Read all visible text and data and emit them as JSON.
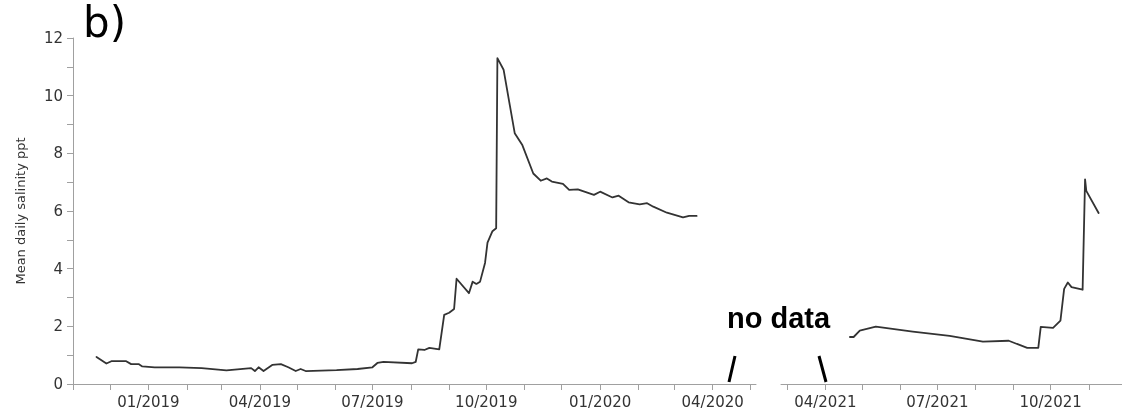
{
  "chart_data": [
    {
      "type": "line",
      "title": "b)",
      "ylabel": "Mean daily salinity ppt",
      "xlim": [
        "2018-11-01",
        "2020-05-06"
      ],
      "xticks": [
        {
          "value": "2018-11",
          "label": null
        },
        {
          "value": "2018-12",
          "label": null
        },
        {
          "value": "2019-01",
          "label": "01/2019"
        },
        {
          "value": "2019-02",
          "label": null
        },
        {
          "value": "2019-03",
          "label": null
        },
        {
          "value": "2019-04",
          "label": "04/2019"
        },
        {
          "value": "2019-05",
          "label": null
        },
        {
          "value": "2019-06",
          "label": null
        },
        {
          "value": "2019-07",
          "label": "07/2019"
        },
        {
          "value": "2019-08",
          "label": null
        },
        {
          "value": "2019-09",
          "label": null
        },
        {
          "value": "2019-10",
          "label": "10/2019"
        },
        {
          "value": "2019-11",
          "label": null
        },
        {
          "value": "2019-12",
          "label": null
        },
        {
          "value": "2020-01",
          "label": "01/2020"
        },
        {
          "value": "2020-02",
          "label": null
        },
        {
          "value": "2020-03",
          "label": null
        },
        {
          "value": "2020-04",
          "label": "04/2020"
        },
        {
          "value": "2020-05",
          "label": null
        }
      ],
      "ylim": [
        0,
        12
      ],
      "yticks": [
        0,
        {
          "value": 1,
          "label": null
        },
        2,
        {
          "value": 3,
          "label": null
        },
        4,
        {
          "value": 5,
          "label": null
        },
        6,
        {
          "value": 7,
          "label": null
        },
        8,
        {
          "value": 9,
          "label": null
        },
        10,
        {
          "value": 11,
          "label": null
        },
        12
      ],
      "grid": false,
      "marker": "none",
      "line_style": "solid",
      "series": [
        {
          "color": "#333333",
          "x": [
            "2018-11-20",
            "2018-11-28",
            "2018-12-02",
            "2018-12-14",
            "2018-12-18",
            "2018-12-24",
            "2018-12-27",
            "2019-01-06",
            "2019-01-26",
            "2019-02-13",
            "2019-03-05",
            "2019-03-25",
            "2019-03-28",
            "2019-03-31",
            "2019-04-04",
            "2019-04-11",
            "2019-04-18",
            "2019-04-24",
            "2019-04-30",
            "2019-05-04",
            "2019-05-08",
            "2019-06-02",
            "2019-06-19",
            "2019-07-01",
            "2019-07-05",
            "2019-07-10",
            "2019-08-02",
            "2019-08-05",
            "2019-08-07",
            "2019-08-12",
            "2019-08-16",
            "2019-08-24",
            "2019-08-28",
            "2019-09-01",
            "2019-09-05",
            "2019-09-07",
            "2019-09-17",
            "2019-09-20",
            "2019-09-23",
            "2019-09-26",
            "2019-09-30",
            "2019-10-02",
            "2019-10-06",
            "2019-10-09",
            "2019-10-10",
            "2019-10-15",
            "2019-10-24",
            "2019-10-30",
            "2019-11-08",
            "2019-11-14",
            "2019-11-19",
            "2019-11-23",
            "2019-12-02",
            "2019-12-07",
            "2019-12-14",
            "2019-12-27",
            "2020-01-01",
            "2020-01-11",
            "2020-01-16",
            "2020-01-24",
            "2020-02-02",
            "2020-02-08",
            "2020-02-13",
            "2020-02-24",
            "2020-03-08",
            "2020-03-13",
            "2020-03-19"
          ],
          "values": [
            0.94,
            0.71,
            0.79,
            0.79,
            0.69,
            0.69,
            0.61,
            0.58,
            0.58,
            0.55,
            0.47,
            0.55,
            0.45,
            0.58,
            0.45,
            0.66,
            0.69,
            0.58,
            0.45,
            0.52,
            0.45,
            0.48,
            0.52,
            0.58,
            0.73,
            0.77,
            0.72,
            0.77,
            1.2,
            1.18,
            1.25,
            1.2,
            2.4,
            2.47,
            2.6,
            3.65,
            3.15,
            3.55,
            3.47,
            3.55,
            4.2,
            4.9,
            5.3,
            5.4,
            11.3,
            10.9,
            8.7,
            8.3,
            7.3,
            7.05,
            7.13,
            7.02,
            6.94,
            6.73,
            6.75,
            6.56,
            6.67,
            6.47,
            6.53,
            6.3,
            6.23,
            6.27,
            6.15,
            5.94,
            5.78,
            5.83,
            5.83
          ]
        }
      ]
    },
    {
      "type": "line",
      "annotations": [
        "no data"
      ],
      "xlim": [
        "2021-02-24",
        "2021-11-28"
      ],
      "xticks": [
        {
          "value": "2021-03",
          "label": null
        },
        {
          "value": "2021-04",
          "label": "04/2021"
        },
        {
          "value": "2021-05",
          "label": null
        },
        {
          "value": "2021-06",
          "label": null
        },
        {
          "value": "2021-07",
          "label": "07/2021"
        },
        {
          "value": "2021-08",
          "label": null
        },
        {
          "value": "2021-09",
          "label": null
        },
        {
          "value": "2021-10",
          "label": "10/2021"
        },
        {
          "value": "2021-11",
          "label": null
        }
      ],
      "ylim": [
        0,
        12
      ],
      "tick_labels": "x",
      "grid": false,
      "marker": "none",
      "line_style": "solid",
      "series": [
        {
          "color": "#333333",
          "x": [
            "2021-04-21",
            "2021-04-24",
            "2021-04-29",
            "2021-05-12",
            "2021-06-11",
            "2021-07-11",
            "2021-08-07",
            "2021-08-28",
            "2021-09-12",
            "2021-09-21",
            "2021-09-23",
            "2021-10-03",
            "2021-10-09",
            "2021-10-12",
            "2021-10-15",
            "2021-10-18",
            "2021-10-27",
            "2021-10-29",
            "2021-10-30",
            "2021-11-09"
          ],
          "values": [
            1.63,
            1.63,
            1.85,
            1.99,
            1.82,
            1.67,
            1.47,
            1.5,
            1.25,
            1.25,
            1.98,
            1.95,
            2.2,
            3.3,
            3.52,
            3.36,
            3.27,
            7.1,
            6.7,
            5.93
          ]
        }
      ]
    }
  ]
}
